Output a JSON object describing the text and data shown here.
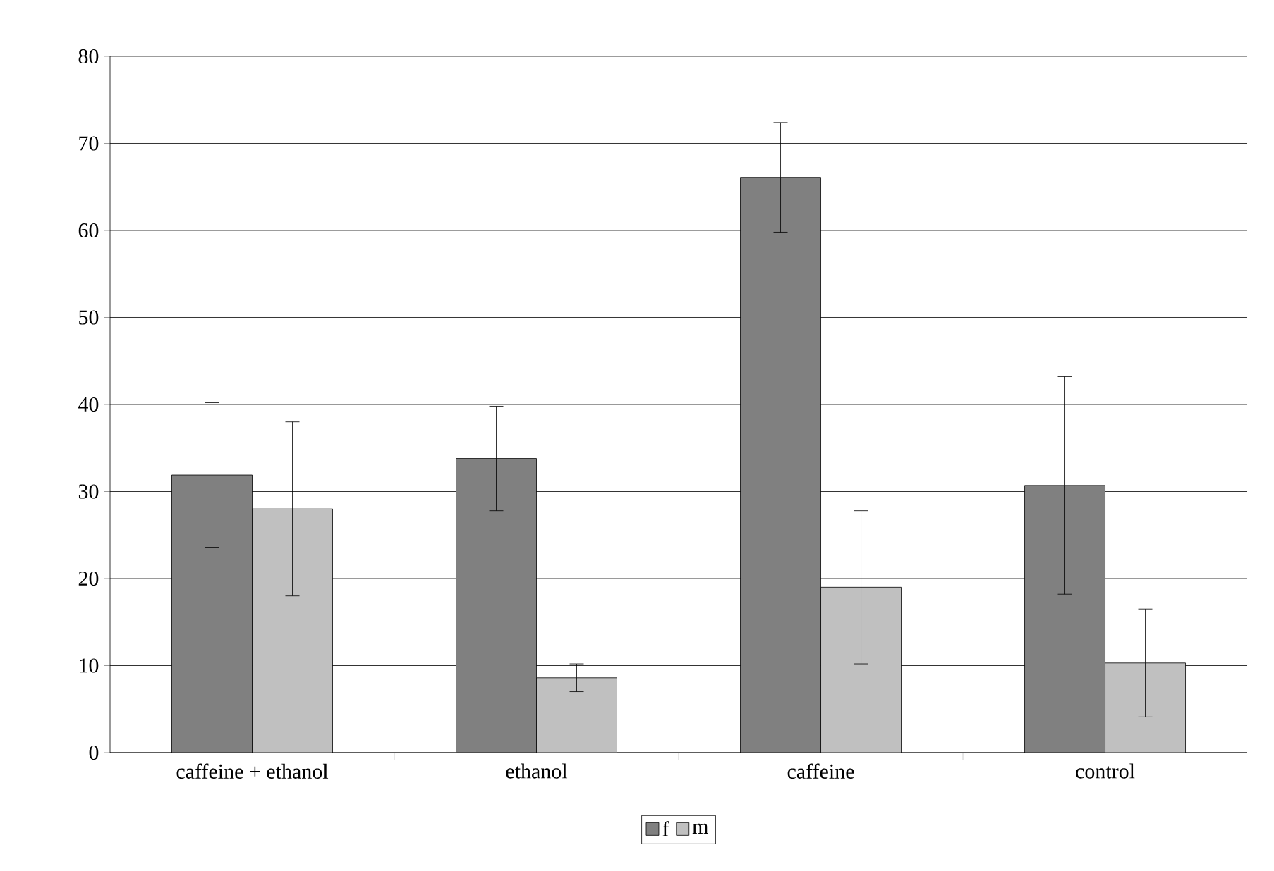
{
  "chart_data": {
    "type": "bar",
    "categories": [
      "caffeine + ethanol",
      "ethanol",
      "caffeine",
      "control"
    ],
    "series": [
      {
        "name": "f",
        "color": "#808080",
        "values": [
          31.9,
          33.8,
          66.1,
          30.7
        ],
        "errors": [
          8.3,
          6.0,
          6.3,
          12.5
        ]
      },
      {
        "name": "m",
        "color": "#c0c0c0",
        "values": [
          28.0,
          8.6,
          19.0,
          10.3
        ],
        "errors": [
          10.0,
          1.6,
          8.8,
          6.2
        ]
      }
    ],
    "ylim": [
      0,
      80
    ],
    "yticks": [
      0,
      10,
      20,
      30,
      40,
      50,
      60,
      70,
      80
    ],
    "grid": "y",
    "legend": "bottom"
  }
}
